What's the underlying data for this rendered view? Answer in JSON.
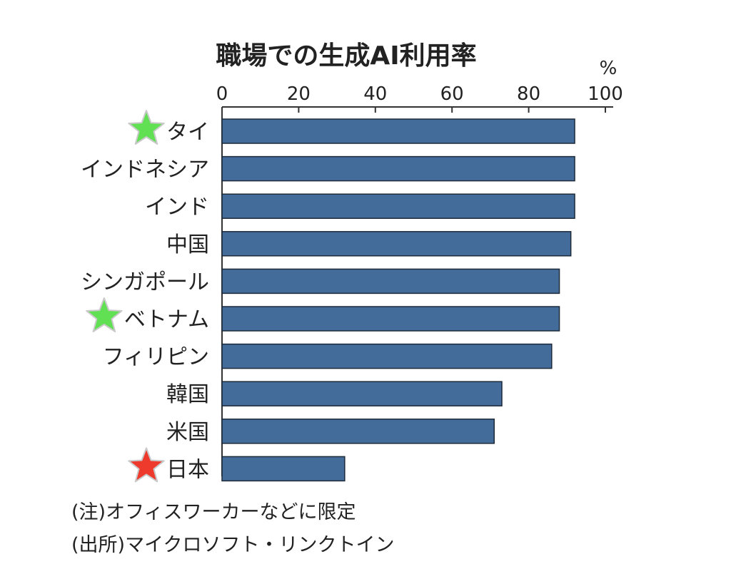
{
  "chart_data": {
    "type": "bar",
    "orientation": "horizontal",
    "title": "職場での生成AI利用率",
    "unit": "%",
    "xlim": [
      0,
      100
    ],
    "ticks": [
      0,
      20,
      40,
      60,
      80,
      100
    ],
    "categories": [
      "タイ",
      "インドネシア",
      "インド",
      "中国",
      "シンガポール",
      "ベトナム",
      "フィリピン",
      "韓国",
      "米国",
      "日本"
    ],
    "values": [
      92,
      92,
      92,
      91,
      88,
      88,
      86,
      73,
      71,
      32
    ],
    "bar_color": "#446c9b",
    "markers": [
      {
        "category": "タイ",
        "symbol": "star",
        "color": "#62e054"
      },
      {
        "category": "ベトナム",
        "symbol": "star",
        "color": "#62e054"
      },
      {
        "category": "日本",
        "symbol": "star",
        "color": "#ee3a2c"
      }
    ],
    "grid": false,
    "legend": "none"
  },
  "notes": {
    "note": "(注)オフィスワーカーなどに限定",
    "source": "(出所)マイクロソフト・リンクトイン"
  }
}
